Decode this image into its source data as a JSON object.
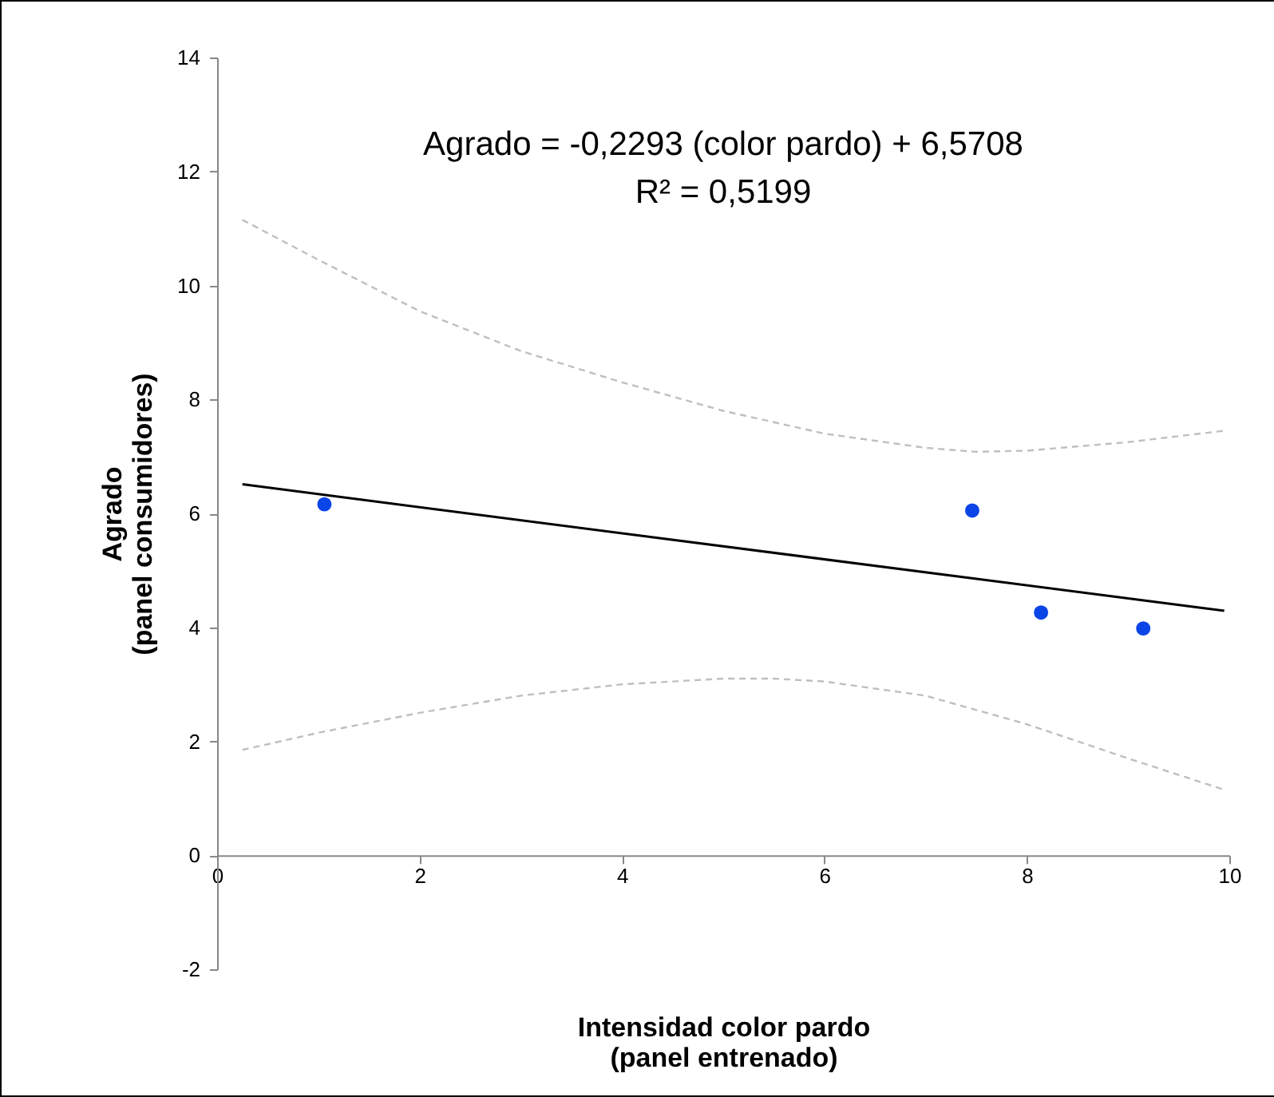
{
  "chart_data": {
    "type": "scatter",
    "xlabel": "Intensidad color pardo\n(panel entrenado)",
    "ylabel": "Agrado\n(panel consumidores)",
    "annotations": [
      "Agrado = -0,2293 (color pardo) + 6,5708",
      "R² = 0,5199"
    ],
    "xlim": [
      0,
      10
    ],
    "xticks": [
      0,
      2,
      4,
      6,
      8,
      10
    ],
    "ylim": [
      -2,
      14
    ],
    "yticks": [
      -2,
      0,
      2,
      4,
      6,
      8,
      10,
      12,
      14
    ],
    "series": [
      {
        "type": "line",
        "color": "#bfbfbf",
        "line_style": "dashed",
        "x": [
          0.25,
          1,
          2,
          3,
          4,
          5,
          6,
          7,
          7.5,
          8,
          9,
          9.95
        ],
        "values": [
          11.15,
          10.45,
          9.55,
          8.85,
          8.3,
          7.8,
          7.4,
          7.15,
          7.08,
          7.1,
          7.25,
          7.45
        ]
      },
      {
        "type": "line",
        "color": "#bfbfbf",
        "line_style": "dashed",
        "x": [
          0.25,
          1,
          2,
          3,
          4,
          5,
          5.5,
          6,
          7,
          8,
          9,
          9.95
        ],
        "values": [
          1.85,
          2.15,
          2.5,
          2.8,
          3.0,
          3.1,
          3.1,
          3.05,
          2.8,
          2.3,
          1.7,
          1.15
        ]
      },
      {
        "type": "line",
        "color": "#000000",
        "line_style": "solid",
        "x": [
          0.25,
          9.95
        ],
        "values": [
          6.51,
          4.29
        ]
      },
      {
        "type": "scatter",
        "color": "#0b45e8",
        "marker": "circle",
        "x": [
          1.06,
          7.46,
          8.14,
          9.15
        ],
        "values": [
          6.16,
          6.05,
          4.26,
          3.98
        ]
      }
    ]
  }
}
